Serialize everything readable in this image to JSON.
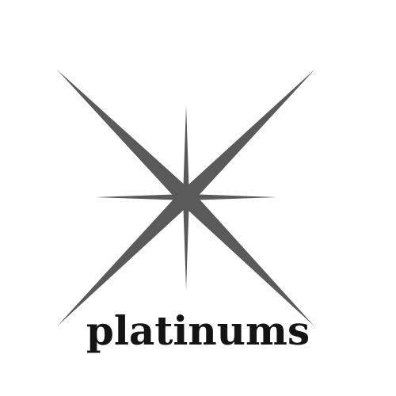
{
  "logo": {
    "icon": "sparkle-star-icon",
    "wordmark": "platinums",
    "colors": {
      "star": "#5a5a5a",
      "text": "#141414",
      "background": "#ffffff"
    }
  }
}
